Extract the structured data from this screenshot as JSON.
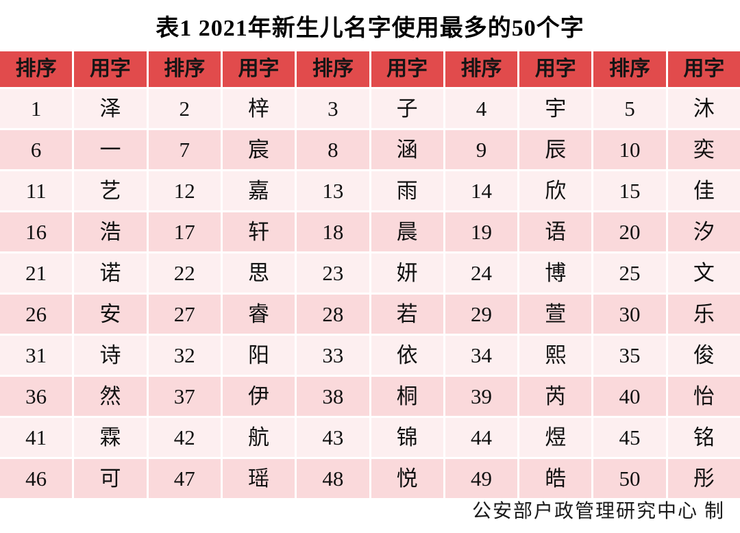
{
  "title": "表1 2021年新生儿名字使用最多的50个字",
  "colors": {
    "header_bg": "#e14b4c",
    "row_light_bg": "#fdeff0",
    "row_dark_bg": "#fad9db",
    "text": "#111111"
  },
  "table": {
    "headers": [
      "排序",
      "用字",
      "排序",
      "用字",
      "排序",
      "用字",
      "排序",
      "用字",
      "排序",
      "用字"
    ],
    "rows": [
      [
        "1",
        "泽",
        "2",
        "梓",
        "3",
        "子",
        "4",
        "宇",
        "5",
        "沐"
      ],
      [
        "6",
        "一",
        "7",
        "宸",
        "8",
        "涵",
        "9",
        "辰",
        "10",
        "奕"
      ],
      [
        "11",
        "艺",
        "12",
        "嘉",
        "13",
        "雨",
        "14",
        "欣",
        "15",
        "佳"
      ],
      [
        "16",
        "浩",
        "17",
        "轩",
        "18",
        "晨",
        "19",
        "语",
        "20",
        "汐"
      ],
      [
        "21",
        "诺",
        "22",
        "思",
        "23",
        "妍",
        "24",
        "博",
        "25",
        "文"
      ],
      [
        "26",
        "安",
        "27",
        "睿",
        "28",
        "若",
        "29",
        "萱",
        "30",
        "乐"
      ],
      [
        "31",
        "诗",
        "32",
        "阳",
        "33",
        "依",
        "34",
        "熙",
        "35",
        "俊"
      ],
      [
        "36",
        "然",
        "37",
        "伊",
        "38",
        "桐",
        "39",
        "芮",
        "40",
        "怡"
      ],
      [
        "41",
        "霖",
        "42",
        "航",
        "43",
        "锦",
        "44",
        "煜",
        "45",
        "铭"
      ],
      [
        "46",
        "可",
        "47",
        "瑶",
        "48",
        "悦",
        "49",
        "皓",
        "50",
        "彤"
      ]
    ]
  },
  "footer": {
    "credit": "公安部户政管理研究中心 制"
  }
}
